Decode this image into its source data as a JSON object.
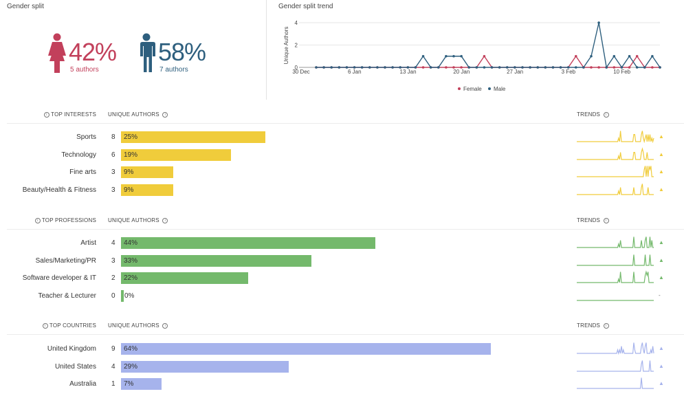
{
  "gender_split": {
    "title": "Gender split",
    "female": {
      "pct": "42%",
      "authors": "5 authors",
      "color": "#c2405b"
    },
    "male": {
      "pct": "58%",
      "authors": "7 authors",
      "color": "#2e5f7e"
    }
  },
  "trend_panel": {
    "title": "Gender split trend",
    "chart_data": {
      "type": "line",
      "ylabel": "Unique Authors",
      "ylim": [
        0,
        4
      ],
      "yticks": [
        "0",
        "2",
        "4"
      ],
      "xticks": [
        "30 Dec",
        "6 Jan",
        "13 Jan",
        "20 Jan",
        "27 Jan",
        "3 Feb",
        "10 Feb"
      ],
      "x_start": "30 Dec",
      "x_days": 45,
      "series": [
        {
          "name": "Female",
          "color": "#c2405b",
          "values": [
            0,
            0,
            0,
            0,
            0,
            0,
            0,
            0,
            0,
            0,
            0,
            0,
            0,
            0,
            0,
            0,
            0,
            0,
            0,
            0,
            0,
            0,
            1,
            0,
            0,
            0,
            0,
            0,
            0,
            0,
            0,
            0,
            0,
            0,
            1,
            0,
            0,
            0,
            0,
            0,
            0,
            0,
            1,
            0,
            0,
            0
          ]
        },
        {
          "name": "Male",
          "color": "#2e5f7e",
          "values": [
            0,
            0,
            0,
            0,
            0,
            0,
            0,
            0,
            0,
            0,
            0,
            0,
            0,
            0,
            1,
            0,
            0,
            1,
            1,
            1,
            0,
            0,
            0,
            0,
            0,
            0,
            0,
            0,
            0,
            0,
            0,
            0,
            0,
            0,
            0,
            0,
            1,
            4,
            0,
            1,
            0,
            1,
            0,
            0,
            1,
            0
          ]
        }
      ]
    }
  },
  "interests": {
    "heading": "TOP INTERESTS",
    "col": "UNIQUE AUTHORS",
    "trends": "TRENDS",
    "color": "#f0cc3b",
    "rows": [
      {
        "label": "Sports",
        "count": "8",
        "pct": "25%",
        "value": 25,
        "arrow": "▲"
      },
      {
        "label": "Technology",
        "count": "6",
        "pct": "19%",
        "value": 19,
        "arrow": "▲"
      },
      {
        "label": "Fine arts",
        "count": "3",
        "pct": "9%",
        "value": 9,
        "arrow": "▲"
      },
      {
        "label": "Beauty/Health & Fitness",
        "count": "3",
        "pct": "9%",
        "value": 9,
        "arrow": "▲"
      }
    ]
  },
  "professions": {
    "heading": "TOP PROFESSIONS",
    "col": "UNIQUE AUTHORS",
    "trends": "TRENDS",
    "color": "#74b96c",
    "rows": [
      {
        "label": "Artist",
        "count": "4",
        "pct": "44%",
        "value": 44,
        "arrow": "▲"
      },
      {
        "label": "Sales/Marketing/PR",
        "count": "3",
        "pct": "33%",
        "value": 33,
        "arrow": "▲"
      },
      {
        "label": "Software developer & IT",
        "count": "2",
        "pct": "22%",
        "value": 22,
        "arrow": "▲"
      },
      {
        "label": "Teacher & Lecturer",
        "count": "0",
        "pct": "0%",
        "value": 0,
        "arrow": "-"
      }
    ]
  },
  "countries": {
    "heading": "TOP COUNTRIES",
    "col": "UNIQUE AUTHORS",
    "trends": "TRENDS",
    "color": "#a6b3ec",
    "rows": [
      {
        "label": "United Kingdom",
        "count": "9",
        "pct": "64%",
        "value": 64,
        "arrow": "▲"
      },
      {
        "label": "United States",
        "count": "4",
        "pct": "29%",
        "value": 29,
        "arrow": "▲"
      },
      {
        "label": "Australia",
        "count": "1",
        "pct": "7%",
        "value": 7,
        "arrow": "▲"
      }
    ]
  }
}
